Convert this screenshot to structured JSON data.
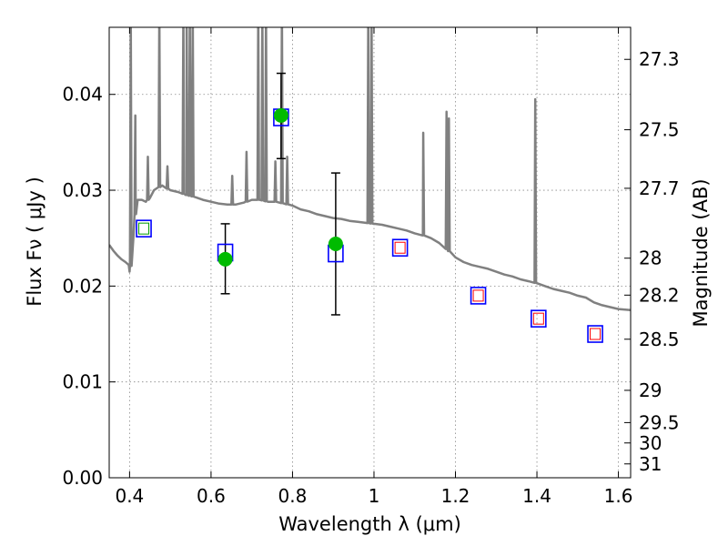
{
  "chart_data": {
    "type": "scatter",
    "xlabel": "Wavelength  λ (μm)",
    "ylabel": "Flux  Fν  ( μJy )",
    "y2label": "Magnitude (AB)",
    "xlim": [
      0.35,
      1.63
    ],
    "ylim": [
      0.0,
      0.047
    ],
    "grid": true,
    "x_ticks": [
      0.4,
      0.6,
      0.8,
      1.0,
      1.2,
      1.4,
      1.6
    ],
    "x_tick_labels": [
      "0.4",
      "0.6",
      "0.8",
      "1",
      "1.2",
      "1.4",
      "1.6"
    ],
    "y_ticks": [
      0.0,
      0.01,
      0.02,
      0.03,
      0.04
    ],
    "y_tick_labels": [
      "0.00",
      "0.01",
      "0.02",
      "0.03",
      "0.04"
    ],
    "mag_ticks": [
      27.3,
      27.5,
      27.7,
      28,
      28.2,
      28.5,
      29,
      29.5,
      30,
      31
    ],
    "mag_tick_labels": [
      "27.3",
      "27.5",
      "27.7",
      "28",
      "28.2",
      "28.5",
      "29",
      "29.5",
      "30",
      "31"
    ],
    "colors": {
      "template": "#808080",
      "model_box": "#0000ff",
      "upper_box": "#ff0000",
      "upper_inner": "#009900",
      "observed": "#00bb00",
      "errorbar": "#000000",
      "grid": "#888888"
    },
    "template_spectrum": [
      [
        0.35,
        0.0243
      ],
      [
        0.36,
        0.0237
      ],
      [
        0.37,
        0.0232
      ],
      [
        0.38,
        0.0228
      ],
      [
        0.39,
        0.0225
      ],
      [
        0.398,
        0.0222
      ],
      [
        0.4,
        0.0215
      ],
      [
        0.405,
        0.0225
      ],
      [
        0.41,
        0.0255
      ],
      [
        0.415,
        0.028
      ],
      [
        0.42,
        0.029
      ],
      [
        0.43,
        0.029
      ],
      [
        0.44,
        0.0288
      ],
      [
        0.45,
        0.0292
      ],
      [
        0.46,
        0.03
      ],
      [
        0.48,
        0.0305
      ],
      [
        0.5,
        0.03
      ],
      [
        0.52,
        0.0298
      ],
      [
        0.54,
        0.0295
      ],
      [
        0.56,
        0.0293
      ],
      [
        0.58,
        0.029
      ],
      [
        0.6,
        0.0288
      ],
      [
        0.62,
        0.0286
      ],
      [
        0.64,
        0.0285
      ],
      [
        0.66,
        0.0285
      ],
      [
        0.68,
        0.0287
      ],
      [
        0.7,
        0.029
      ],
      [
        0.72,
        0.029
      ],
      [
        0.74,
        0.0288
      ],
      [
        0.76,
        0.0288
      ],
      [
        0.78,
        0.0286
      ],
      [
        0.8,
        0.0284
      ],
      [
        0.82,
        0.028
      ],
      [
        0.84,
        0.0278
      ],
      [
        0.86,
        0.0275
      ],
      [
        0.88,
        0.0273
      ],
      [
        0.9,
        0.0271
      ],
      [
        0.92,
        0.027
      ],
      [
        0.94,
        0.0268
      ],
      [
        0.96,
        0.0267
      ],
      [
        0.98,
        0.0266
      ],
      [
        1.0,
        0.0265
      ],
      [
        1.02,
        0.0264
      ],
      [
        1.04,
        0.0262
      ],
      [
        1.06,
        0.026
      ],
      [
        1.08,
        0.0258
      ],
      [
        1.1,
        0.0255
      ],
      [
        1.12,
        0.0253
      ],
      [
        1.14,
        0.025
      ],
      [
        1.16,
        0.0245
      ],
      [
        1.18,
        0.0238
      ],
      [
        1.2,
        0.023
      ],
      [
        1.22,
        0.0225
      ],
      [
        1.24,
        0.0222
      ],
      [
        1.26,
        0.022
      ],
      [
        1.28,
        0.0218
      ],
      [
        1.3,
        0.0215
      ],
      [
        1.32,
        0.0212
      ],
      [
        1.34,
        0.021
      ],
      [
        1.36,
        0.0207
      ],
      [
        1.38,
        0.0205
      ],
      [
        1.4,
        0.0203
      ],
      [
        1.42,
        0.02
      ],
      [
        1.44,
        0.0197
      ],
      [
        1.46,
        0.0195
      ],
      [
        1.48,
        0.0193
      ],
      [
        1.5,
        0.019
      ],
      [
        1.52,
        0.0188
      ],
      [
        1.54,
        0.0183
      ],
      [
        1.56,
        0.018
      ],
      [
        1.58,
        0.0178
      ],
      [
        1.6,
        0.0176
      ],
      [
        1.63,
        0.0175
      ]
    ],
    "emission_lines": [
      {
        "x": 0.403,
        "y": 0.049
      },
      {
        "x": 0.414,
        "y": 0.0378
      },
      {
        "x": 0.445,
        "y": 0.0335
      },
      {
        "x": 0.473,
        "y": 0.049
      },
      {
        "x": 0.493,
        "y": 0.0325
      },
      {
        "x": 0.532,
        "y": 0.049
      },
      {
        "x": 0.54,
        "y": 0.049
      },
      {
        "x": 0.548,
        "y": 0.049
      },
      {
        "x": 0.555,
        "y": 0.049
      },
      {
        "x": 0.652,
        "y": 0.0315
      },
      {
        "x": 0.687,
        "y": 0.034
      },
      {
        "x": 0.716,
        "y": 0.049
      },
      {
        "x": 0.726,
        "y": 0.049
      },
      {
        "x": 0.735,
        "y": 0.049
      },
      {
        "x": 0.758,
        "y": 0.033
      },
      {
        "x": 0.774,
        "y": 0.049
      },
      {
        "x": 0.787,
        "y": 0.0335
      },
      {
        "x": 0.986,
        "y": 0.049
      },
      {
        "x": 0.994,
        "y": 0.049
      },
      {
        "x": 1.121,
        "y": 0.036
      },
      {
        "x": 1.178,
        "y": 0.0382
      },
      {
        "x": 1.184,
        "y": 0.0375
      },
      {
        "x": 1.396,
        "y": 0.0395
      }
    ],
    "model_boxes": [
      {
        "x": 0.435,
        "y": 0.026
      },
      {
        "x": 0.635,
        "y": 0.0235
      },
      {
        "x": 0.772,
        "y": 0.0376
      },
      {
        "x": 0.906,
        "y": 0.0234
      },
      {
        "x": 1.064,
        "y": 0.024
      },
      {
        "x": 1.256,
        "y": 0.019
      },
      {
        "x": 1.404,
        "y": 0.0166
      },
      {
        "x": 1.543,
        "y": 0.015
      }
    ],
    "nondetections": [
      {
        "x": 0.435,
        "y": 0.026,
        "inner": "green"
      },
      {
        "x": 1.064,
        "y": 0.024,
        "inner": "red"
      },
      {
        "x": 1.256,
        "y": 0.019,
        "inner": "red"
      },
      {
        "x": 1.404,
        "y": 0.0166,
        "inner": "red"
      },
      {
        "x": 1.543,
        "y": 0.015,
        "inner": "red"
      }
    ],
    "observed": [
      {
        "x": 0.635,
        "y": 0.0228,
        "err_low": 0.0192,
        "err_high": 0.0265
      },
      {
        "x": 0.772,
        "y": 0.0378,
        "err_low": 0.0333,
        "err_high": 0.0422
      },
      {
        "x": 0.906,
        "y": 0.0244,
        "err_low": 0.017,
        "err_high": 0.0318
      }
    ]
  }
}
